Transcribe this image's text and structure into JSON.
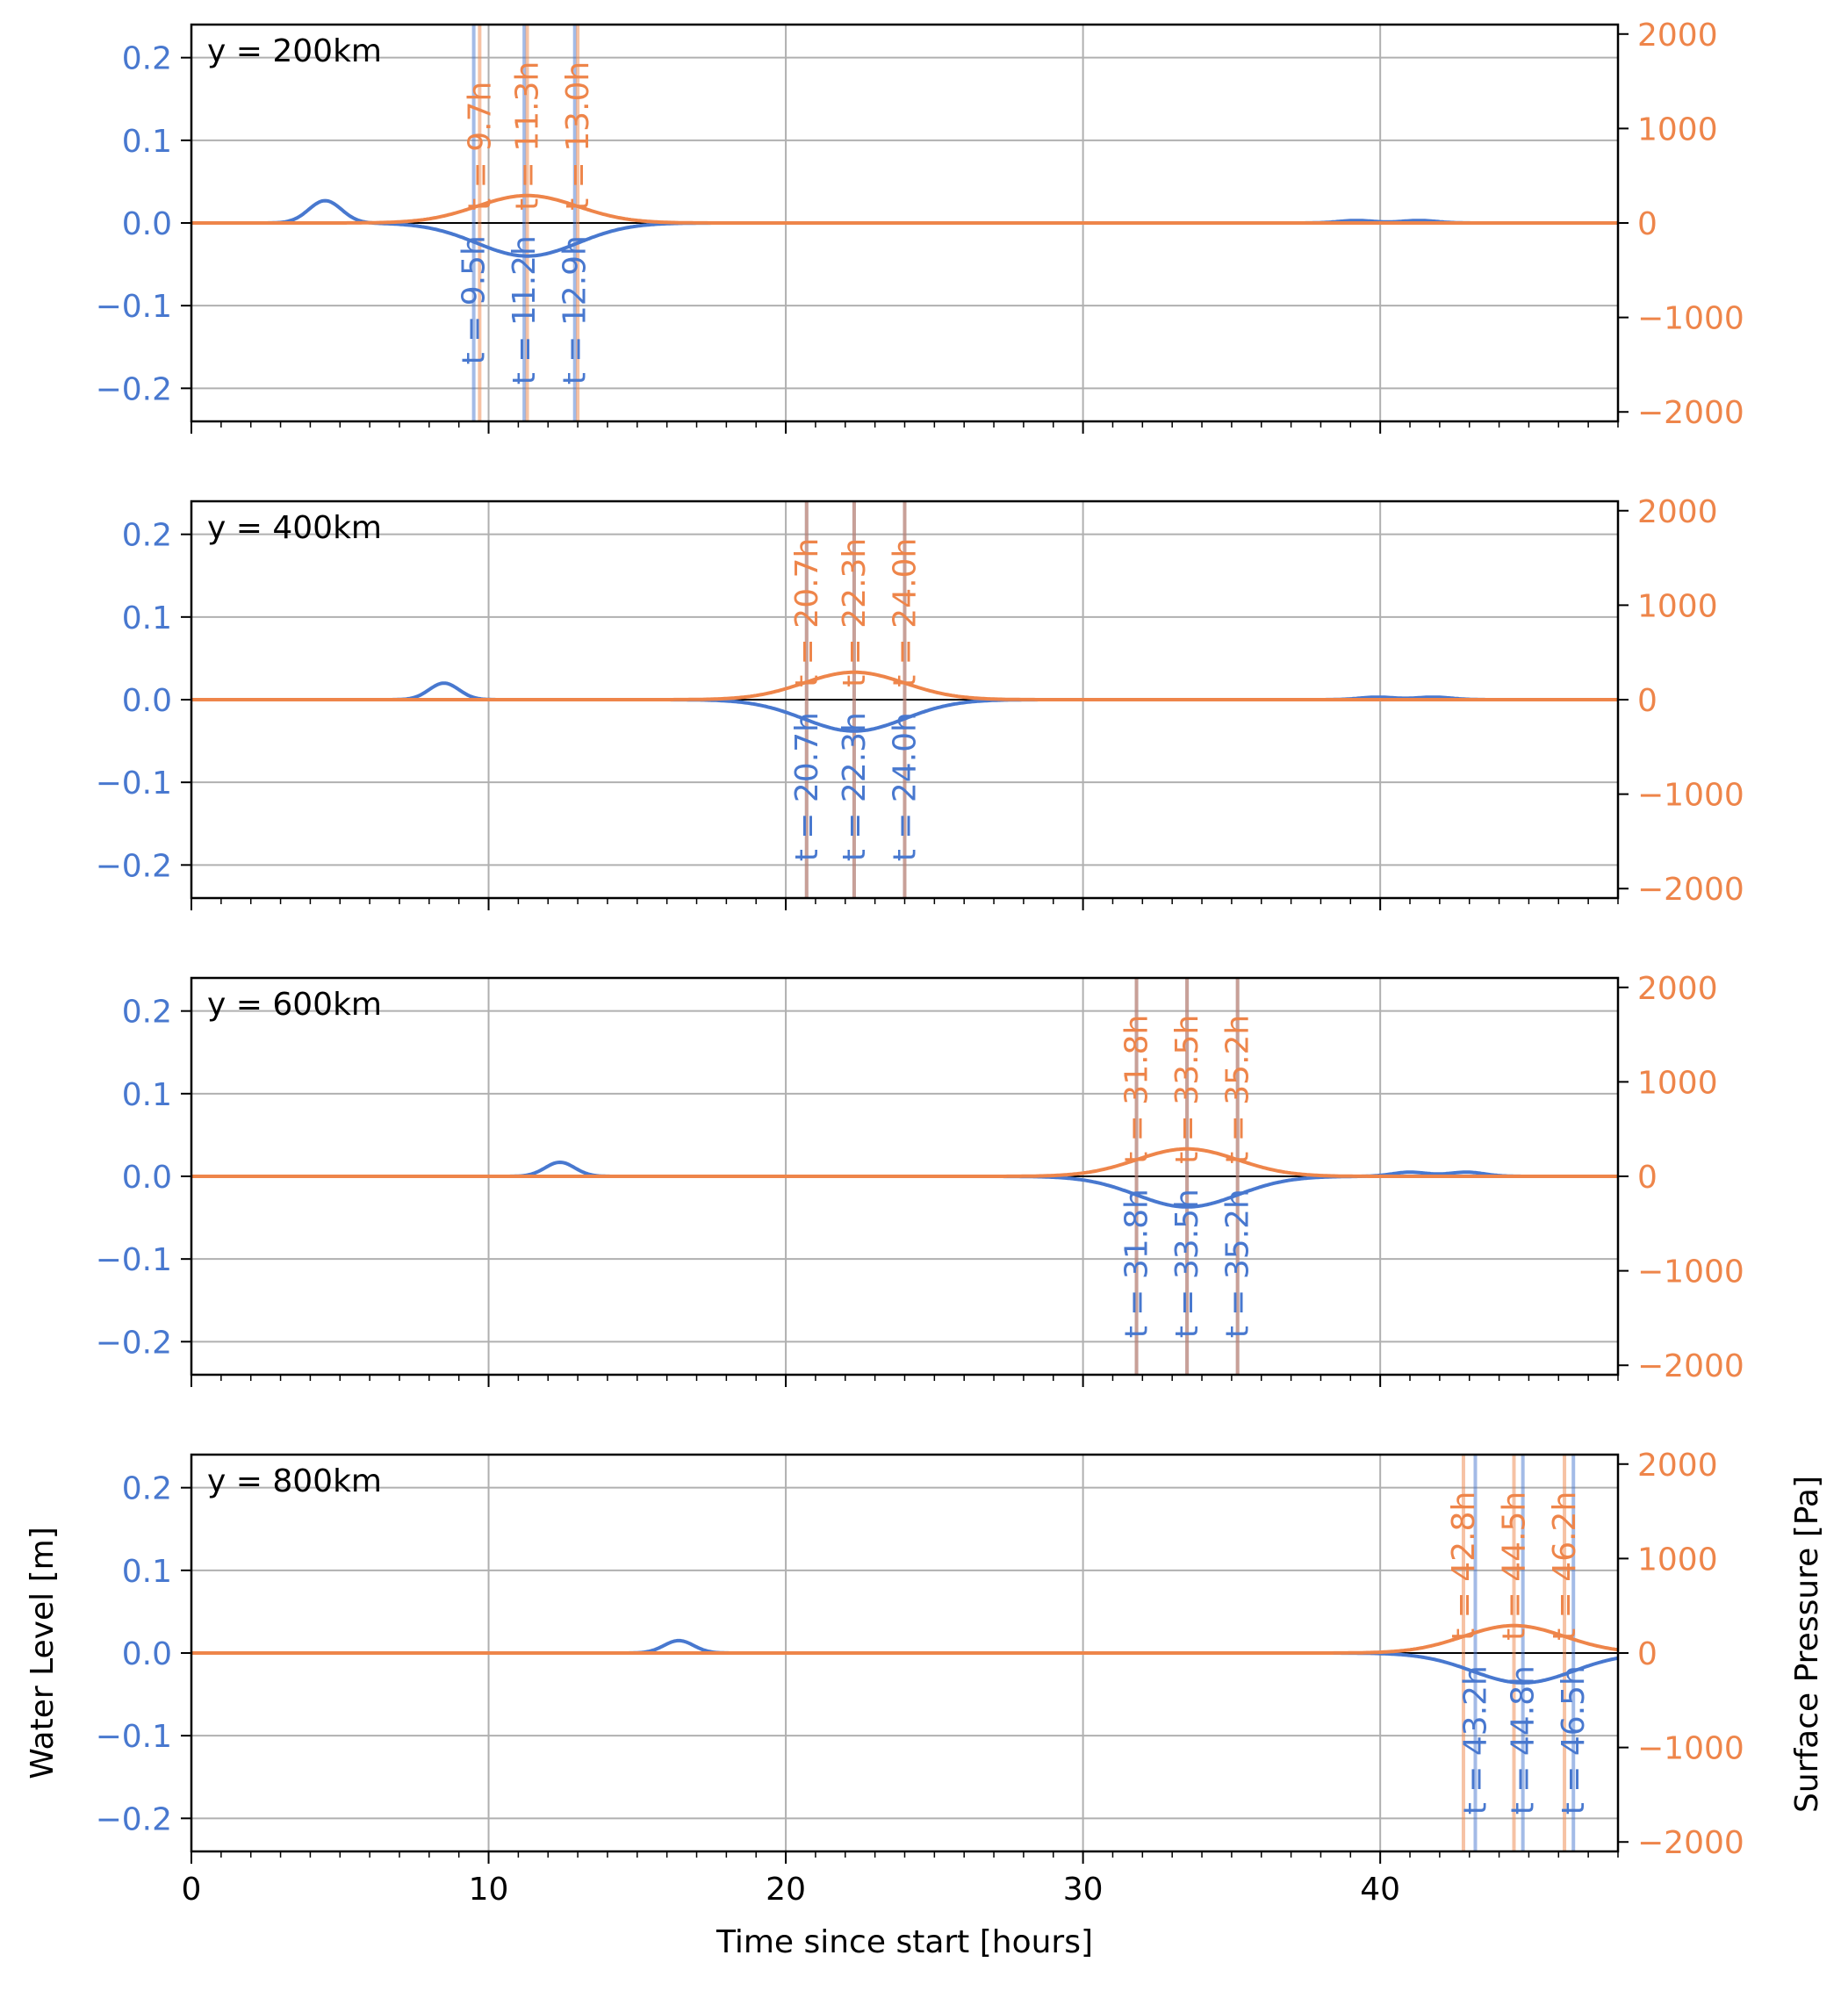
{
  "colors": {
    "water": "#4878cf",
    "water_light": "#a5bde6",
    "pressure": "#ee854a",
    "pressure_light": "#f6c2a3",
    "grid": "#b0b0b0",
    "axis": "#000000"
  },
  "chart_data": [
    {
      "type": "line",
      "panel_label": "y = 200km",
      "left_axis": {
        "ylim": [
          -0.24,
          0.24
        ],
        "ticks": [
          -0.2,
          -0.1,
          0.0,
          0.1,
          0.2
        ],
        "tick_labels": [
          "−0.2",
          "−0.1",
          "0.0",
          "0.1",
          "0.2"
        ],
        "color": "#4878cf"
      },
      "right_axis": {
        "ylim": [
          -2100,
          2100
        ],
        "ticks": [
          -2000,
          -1000,
          0,
          1000,
          2000
        ],
        "tick_labels": [
          "−2000",
          "−1000",
          "0",
          "1000",
          "2000"
        ],
        "color": "#ee854a"
      },
      "x": {
        "xlim": [
          0,
          48
        ],
        "ticks": [
          0,
          10,
          20,
          30,
          40
        ],
        "tick_labels": [],
        "minor_step": 1
      },
      "grid": true,
      "water_level_series": {
        "dips": [
          {
            "center": 11.3,
            "width": 1.7,
            "amplitude": -0.04
          }
        ],
        "bumps": [
          {
            "center": 4.5,
            "width": 0.55,
            "amplitude": 0.027
          },
          {
            "center": 39.2,
            "width": 0.6,
            "amplitude": 0.003
          },
          {
            "center": 41.3,
            "width": 0.6,
            "amplitude": 0.003
          }
        ]
      },
      "pressure_series": {
        "bumps": [
          {
            "center": 11.3,
            "width": 1.7,
            "amplitude": 290
          }
        ]
      },
      "water_vlines": [
        9.5,
        11.2,
        12.9
      ],
      "pressure_vlines": [
        9.7,
        11.3,
        13.0
      ],
      "water_labels": [
        "t = 9.5h",
        "t = 11.2h",
        "t = 12.9h"
      ],
      "pressure_labels": [
        "t = 9.7h",
        "t = 11.3h",
        "t = 13.0h"
      ],
      "ylabel_left": "",
      "ylabel_right": "",
      "xlabel": ""
    },
    {
      "type": "line",
      "panel_label": "y = 400km",
      "left_axis": {
        "ylim": [
          -0.24,
          0.24
        ],
        "ticks": [
          -0.2,
          -0.1,
          0.0,
          0.1,
          0.2
        ],
        "tick_labels": [
          "−0.2",
          "−0.1",
          "0.0",
          "0.1",
          "0.2"
        ],
        "color": "#4878cf"
      },
      "right_axis": {
        "ylim": [
          -2100,
          2100
        ],
        "ticks": [
          -2000,
          -1000,
          0,
          1000,
          2000
        ],
        "tick_labels": [
          "−2000",
          "−1000",
          "0",
          "1000",
          "2000"
        ],
        "color": "#ee854a"
      },
      "x": {
        "xlim": [
          0,
          48
        ],
        "ticks": [
          0,
          10,
          20,
          30,
          40
        ],
        "tick_labels": [],
        "minor_step": 1
      },
      "grid": true,
      "water_level_series": {
        "dips": [
          {
            "center": 22.3,
            "width": 1.7,
            "amplitude": -0.038
          }
        ],
        "bumps": [
          {
            "center": 8.5,
            "width": 0.5,
            "amplitude": 0.02
          },
          {
            "center": 39.9,
            "width": 0.6,
            "amplitude": 0.003
          },
          {
            "center": 41.8,
            "width": 0.6,
            "amplitude": 0.003
          }
        ]
      },
      "pressure_series": {
        "bumps": [
          {
            "center": 22.3,
            "width": 1.7,
            "amplitude": 290
          }
        ]
      },
      "water_vlines": [
        20.7,
        22.3,
        24.0
      ],
      "pressure_vlines": [
        20.7,
        22.3,
        24.0
      ],
      "water_labels": [
        "t = 20.7h",
        "t = 22.3h",
        "t = 24.0h"
      ],
      "pressure_labels": [
        "t = 20.7h",
        "t = 22.3h",
        "t = 24.0h"
      ],
      "ylabel_left": "",
      "ylabel_right": "",
      "xlabel": ""
    },
    {
      "type": "line",
      "panel_label": "y = 600km",
      "left_axis": {
        "ylim": [
          -0.24,
          0.24
        ],
        "ticks": [
          -0.2,
          -0.1,
          0.0,
          0.1,
          0.2
        ],
        "tick_labels": [
          "−0.2",
          "−0.1",
          "0.0",
          "0.1",
          "0.2"
        ],
        "color": "#4878cf"
      },
      "right_axis": {
        "ylim": [
          -2100,
          2100
        ],
        "ticks": [
          -2000,
          -1000,
          0,
          1000,
          2000
        ],
        "tick_labels": [
          "−2000",
          "−1000",
          "0",
          "1000",
          "2000"
        ],
        "color": "#ee854a"
      },
      "x": {
        "xlim": [
          0,
          48
        ],
        "ticks": [
          0,
          10,
          20,
          30,
          40
        ],
        "tick_labels": [],
        "minor_step": 1
      },
      "grid": true,
      "water_level_series": {
        "dips": [
          {
            "center": 33.5,
            "width": 1.7,
            "amplitude": -0.037
          }
        ],
        "bumps": [
          {
            "center": 12.4,
            "width": 0.5,
            "amplitude": 0.017
          },
          {
            "center": 41.0,
            "width": 0.6,
            "amplitude": 0.005
          },
          {
            "center": 42.9,
            "width": 0.6,
            "amplitude": 0.005
          }
        ]
      },
      "pressure_series": {
        "bumps": [
          {
            "center": 33.5,
            "width": 1.7,
            "amplitude": 290
          }
        ]
      },
      "water_vlines": [
        31.8,
        33.5,
        35.2
      ],
      "pressure_vlines": [
        31.8,
        33.5,
        35.2
      ],
      "water_labels": [
        "t = 31.8h",
        "t = 33.5h",
        "t = 35.2h"
      ],
      "pressure_labels": [
        "t = 31.8h",
        "t = 33.5h",
        "t = 35.2h"
      ],
      "ylabel_left": "",
      "ylabel_right": "",
      "xlabel": ""
    },
    {
      "type": "line",
      "panel_label": "y = 800km",
      "left_axis": {
        "ylim": [
          -0.24,
          0.24
        ],
        "ticks": [
          -0.2,
          -0.1,
          0.0,
          0.1,
          0.2
        ],
        "tick_labels": [
          "−0.2",
          "−0.1",
          "0.0",
          "0.1",
          "0.2"
        ],
        "color": "#4878cf"
      },
      "right_axis": {
        "ylim": [
          -2100,
          2100
        ],
        "ticks": [
          -2000,
          -1000,
          0,
          1000,
          2000
        ],
        "tick_labels": [
          "−2000",
          "−1000",
          "0",
          "1000",
          "2000"
        ],
        "color": "#ee854a"
      },
      "x": {
        "xlim": [
          0,
          48
        ],
        "ticks": [
          0,
          10,
          20,
          30,
          40
        ],
        "tick_labels": [
          "0",
          "10",
          "20",
          "30",
          "40"
        ],
        "minor_step": 1
      },
      "grid": true,
      "water_level_series": {
        "dips": [
          {
            "center": 44.8,
            "width": 1.7,
            "amplitude": -0.036
          }
        ],
        "bumps": [
          {
            "center": 16.4,
            "width": 0.5,
            "amplitude": 0.015
          }
        ]
      },
      "pressure_series": {
        "bumps": [
          {
            "center": 44.5,
            "width": 1.7,
            "amplitude": 290
          }
        ]
      },
      "water_vlines": [
        43.2,
        44.8,
        46.5
      ],
      "pressure_vlines": [
        42.8,
        44.5,
        46.2
      ],
      "water_labels": [
        "t = 43.2h",
        "t = 44.8h",
        "t = 46.5h"
      ],
      "pressure_labels": [
        "t = 42.8h",
        "t = 44.5h",
        "t = 46.2h"
      ],
      "ylabel_left": "Water Level [m]",
      "ylabel_right": "Surface Pressure [Pa]",
      "xlabel": "Time since start [hours]"
    }
  ]
}
